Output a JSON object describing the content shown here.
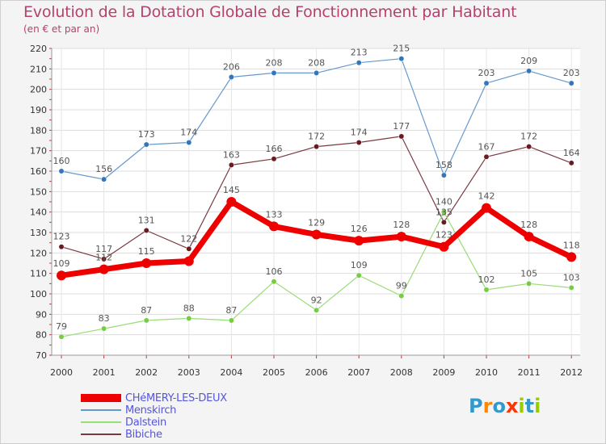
{
  "title": "Evolution de la Dotation Globale de Fonctionnement par Habitant",
  "subtitle": "(en € et par an)",
  "chart_data": {
    "type": "line",
    "title": "Evolution de la Dotation Globale de Fonctionnement par Habitant",
    "ylabel": "(en € et par an)",
    "xlabel": "",
    "ylim": [
      70,
      220
    ],
    "yticks": [
      70,
      80,
      90,
      100,
      110,
      120,
      130,
      140,
      150,
      160,
      170,
      180,
      190,
      200,
      210,
      220
    ],
    "categories": [
      "2000",
      "2001",
      "2002",
      "2003",
      "2004",
      "2005",
      "2006",
      "2007",
      "2008",
      "2009",
      "2010",
      "2011",
      "2012"
    ],
    "grid": true,
    "series": [
      {
        "name": "Menskirch",
        "color": "#6699cc",
        "marker": "#3377bb",
        "values": [
          160,
          156,
          173,
          174,
          206,
          208,
          208,
          213,
          215,
          158,
          203,
          209,
          203
        ],
        "width": 1.2,
        "msize": 3.2
      },
      {
        "name": "Bibiche",
        "color": "#7a3a40",
        "marker": "#6b1a22",
        "values": [
          123,
          117,
          131,
          122,
          163,
          166,
          172,
          174,
          177,
          135,
          167,
          172,
          164
        ],
        "width": 1.2,
        "msize": 3.2
      },
      {
        "name": "Dalstein",
        "color": "#99dd77",
        "marker": "#77cc44",
        "values": [
          79,
          83,
          87,
          88,
          87,
          106,
          92,
          109,
          99,
          140,
          102,
          105,
          103
        ],
        "width": 1.2,
        "msize": 3.2
      },
      {
        "name": "CHéMERY-LES-DEUX",
        "color": "#ee0000",
        "marker": "#ee0000",
        "values": [
          109,
          112,
          115,
          116,
          145,
          133,
          129,
          126,
          128,
          123,
          142,
          128,
          118
        ],
        "width": 7,
        "msize": 6
      }
    ],
    "labels": {
      "Menskirch": [
        160,
        156,
        173,
        174,
        206,
        208,
        208,
        213,
        215,
        158,
        203,
        209,
        203
      ],
      "Bibiche": [
        123,
        117,
        131,
        122,
        163,
        166,
        172,
        174,
        177,
        135,
        167,
        172,
        164
      ],
      "Dalstein": [
        79,
        83,
        87,
        88,
        87,
        106,
        92,
        109,
        99,
        140,
        102,
        105,
        103
      ],
      "CHéMERY-LES-DEUX": [
        109,
        112,
        115,
        null,
        145,
        133,
        129,
        126,
        128,
        123,
        142,
        128,
        118
      ]
    }
  },
  "legend": [
    {
      "name": "CHéMERY-LES-DEUX",
      "color": "#ee0000"
    },
    {
      "name": "Menskirch",
      "color": "#6699cc"
    },
    {
      "name": "Dalstein",
      "color": "#99dd77"
    },
    {
      "name": "Bibiche",
      "color": "#7a3a40"
    }
  ],
  "logo": {
    "letters": [
      "P",
      "r",
      "o",
      "x",
      "i",
      "t",
      "i"
    ],
    "colors": [
      "#3399cc",
      "#ff8800",
      "#3399cc",
      "#ff3300",
      "#99cc00",
      "#3399cc",
      "#99cc00"
    ]
  }
}
